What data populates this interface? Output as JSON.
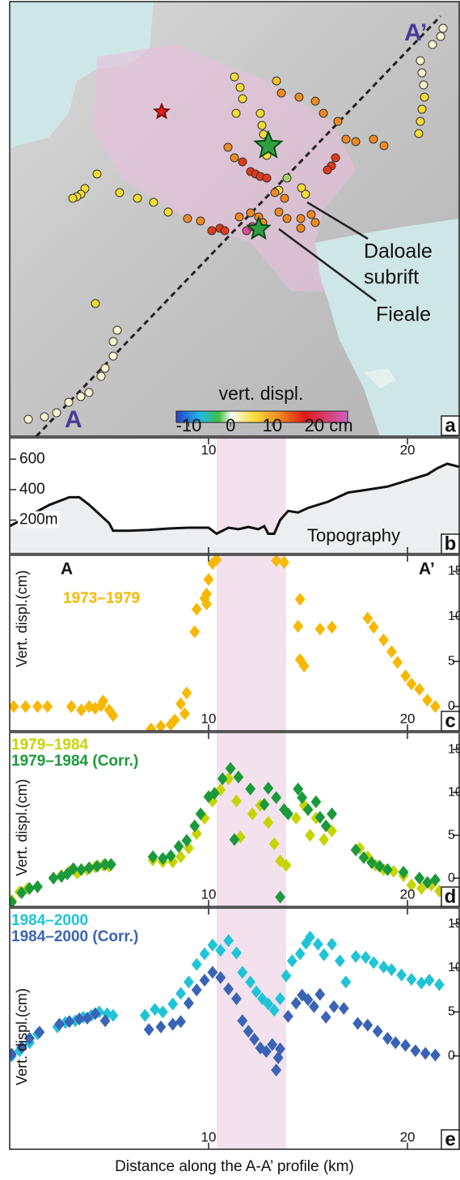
{
  "chart_data": [
    {
      "type": "map",
      "panel_label": "a",
      "labels": {
        "start": "A",
        "end": "A’",
        "rift": [
          "Daloale",
          "subrift"
        ],
        "volcano": "Fieale"
      },
      "colorbar": {
        "title": "vert. displ.",
        "clim": [
          -13,
          28
        ],
        "ticks": [
          -10,
          0,
          10,
          {
            "value": 20,
            "label": "20 cm"
          }
        ]
      }
    },
    {
      "type": "line",
      "panel_label": "b",
      "annotation": "Topography",
      "color": "#111111",
      "xlim": [
        0,
        22.6
      ],
      "xticks": [
        10,
        20
      ],
      "ylim": [
        -20,
        740
      ],
      "yticks": [
        600,
        400,
        {
          "value": 200,
          "label": "200m"
        }
      ],
      "highlight_x": [
        10.4,
        13.9
      ],
      "x": [
        0,
        1,
        2,
        3,
        3.5,
        4,
        4.5,
        5,
        5.2,
        6,
        7,
        8,
        9,
        10,
        10.4,
        11,
        11.5,
        12,
        12.5,
        12.8,
        13,
        13.3,
        13.6,
        14,
        14.5,
        15,
        16,
        17,
        18,
        19,
        20,
        21,
        21.5,
        22,
        22.6
      ],
      "values": [
        160,
        230,
        300,
        350,
        350,
        300,
        240,
        180,
        130,
        130,
        135,
        145,
        150,
        150,
        110,
        150,
        140,
        155,
        140,
        160,
        110,
        110,
        200,
        260,
        250,
        280,
        320,
        380,
        400,
        420,
        460,
        500,
        540,
        570,
        550
      ]
    },
    {
      "type": "scatter",
      "panel_label": "c",
      "ylabel": "Vert. displ.(cm)",
      "start_label": "A",
      "end_label": "A’",
      "xlim": [
        0,
        22.6
      ],
      "xticks": [
        10,
        20
      ],
      "ylim": [
        -2.7,
        16.8
      ],
      "yticks": [
        0,
        5,
        10,
        15
      ],
      "series": [
        {
          "name": "1973–1979",
          "color": "#f9b800",
          "x": [
            0.2,
            0.8,
            1.4,
            1.9,
            3.1,
            3.6,
            4.0,
            4.3,
            4.6,
            4.7,
            5.0,
            5.2,
            7.1,
            7.6,
            8.1,
            8.3,
            8.6,
            8.8,
            8.9,
            9.3,
            9.4,
            9.8,
            9.9,
            10.0,
            10.2,
            10.4,
            9.9,
            13.4,
            13.8,
            14.5,
            14.6,
            14.6,
            14.8,
            15.6,
            16.2,
            18.0,
            18.3,
            18.8,
            19.2,
            19.5,
            19.9,
            20.2,
            20.6,
            21.0,
            21.4
          ],
          "values": [
            0,
            0,
            0,
            0,
            0,
            -0.4,
            0,
            -0.2,
            0.1,
            0.6,
            -0.4,
            -1,
            -2.5,
            -2.2,
            -2,
            -1.5,
            0.3,
            -0.8,
            1.5,
            8.3,
            10.8,
            12,
            12.5,
            14.1,
            15.9,
            16.3,
            11.4,
            16.2,
            16,
            8.9,
            11.9,
            5.2,
            4.5,
            8.6,
            8.8,
            9.8,
            8.8,
            7.4,
            6.1,
            4.9,
            3.4,
            2.5,
            1.9,
            0.7,
            0
          ]
        }
      ]
    },
    {
      "type": "scatter",
      "panel_label": "d",
      "ylabel": "Vert. displ.(cm)",
      "xlim": [
        0,
        22.6
      ],
      "xticks": [
        10,
        20
      ],
      "ylim": [
        -3.3,
        17
      ],
      "yticks": [
        0,
        5,
        10,
        15
      ],
      "series": [
        {
          "name": "1979–1984",
          "color": "#c8d400",
          "x": [
            0.1,
            0.5,
            0.9,
            1.4,
            2.2,
            2.6,
            3.0,
            3.4,
            3.9,
            4.3,
            4.7,
            5.0,
            7.2,
            7.7,
            8.2,
            8.6,
            9.0,
            9.4,
            9.8,
            10.2,
            10.6,
            11.0,
            11.4,
            11.6,
            12.2,
            12.6,
            13.0,
            13.3,
            13.6,
            13.9,
            14.4,
            14.8,
            15.1,
            15.4,
            15.8,
            16.2,
            17.6,
            18.0,
            18.4,
            18.8,
            19.3,
            19.8,
            20.2,
            20.7,
            21.2,
            21.6
          ],
          "values": [
            -2.6,
            -1.6,
            -1.2,
            -1.0,
            0,
            0.3,
            0.8,
            0.6,
            1.0,
            1.3,
            1.5,
            1.4,
            2.1,
            1.9,
            1.9,
            2.5,
            3.5,
            5.2,
            7.0,
            9.0,
            10.3,
            11.6,
            9.0,
            4.8,
            7.5,
            8.5,
            6.5,
            4.0,
            2.0,
            1.5,
            7.0,
            8.5,
            5.0,
            7.0,
            4.5,
            5.5,
            3.5,
            2.5,
            1.5,
            1.0,
            0.8,
            0.3,
            -0.8,
            -1.2,
            -0.8,
            -1.5
          ]
        },
        {
          "name": "1979–1984 (Corr.)",
          "color": "#1a9a3a",
          "x": [
            0.1,
            0.6,
            1.0,
            1.4,
            2.2,
            2.6,
            2.9,
            3.2,
            3.6,
            4.0,
            4.4,
            4.8,
            5.1,
            7.2,
            7.7,
            8.1,
            8.5,
            8.9,
            9.3,
            9.6,
            10.0,
            10.3,
            10.7,
            11.1,
            11.3,
            11.5,
            12.1,
            12.8,
            13.0,
            13.4,
            13.8,
            14.0,
            13.6,
            14.5,
            14.7,
            15.0,
            15.4,
            15.6,
            15.9,
            16.2,
            17.4,
            17.8,
            18.2,
            18.6,
            19.0,
            19.8,
            20.6,
            21.0,
            21.4
          ],
          "values": [
            -2.8,
            -1.7,
            -1.2,
            -1.0,
            0,
            0.2,
            0.5,
            1.1,
            1.0,
            1.2,
            1.4,
            1.6,
            1.6,
            2.5,
            2.3,
            2.6,
            3.7,
            4.4,
            6.1,
            7.5,
            9.5,
            9.9,
            11.6,
            12.8,
            4.5,
            11.8,
            10.4,
            8.6,
            10.5,
            9.4,
            8.0,
            7.5,
            -2.2,
            10.4,
            9.4,
            8.0,
            8.9,
            7.1,
            6.1,
            7.5,
            3.3,
            2.4,
            1.8,
            1.4,
            1.0,
            0.7,
            0,
            -0.5,
            -0.2
          ]
        }
      ]
    },
    {
      "type": "scatter",
      "panel_label": "e",
      "ylabel": "Vert. displ.(cm)",
      "xlabel": "Distance along the A-A’ profile (km)",
      "xlim": [
        0,
        22.6
      ],
      "xticks": [
        10,
        20
      ],
      "ylim": [
        -10.6,
        16.8
      ],
      "yticks": [
        0,
        5,
        10,
        15
      ],
      "series": [
        {
          "name": "1984–2000",
          "color": "#1fc4d6",
          "x": [
            0.1,
            0.5,
            1.0,
            1.4,
            2.4,
            2.8,
            3.3,
            3.7,
            4.1,
            4.5,
            4.9,
            5.2,
            6.8,
            7.3,
            7.7,
            8.2,
            8.6,
            9.0,
            9.4,
            9.8,
            10.2,
            10.6,
            11.0,
            11.4,
            11.7,
            12.1,
            12.4,
            12.7,
            13.0,
            13.3,
            13.6,
            13.9,
            14.2,
            14.6,
            14.9,
            15.1,
            15.5,
            15.8,
            16.2,
            16.6,
            16.9,
            17.4,
            17.9,
            18.3,
            18.8,
            19.2,
            19.7,
            20.2,
            20.7,
            21.1,
            21.6
          ],
          "values": [
            0,
            0.6,
            1.5,
            2.5,
            3.3,
            3.8,
            4.0,
            4.4,
            4.6,
            5.0,
            4.8,
            4.6,
            4.6,
            5.3,
            5.0,
            5.9,
            7.1,
            8.4,
            10.4,
            11.6,
            12.6,
            12.0,
            13.1,
            11.7,
            9.5,
            8.4,
            7.3,
            6.5,
            5.9,
            5.2,
            6.5,
            9.1,
            10.8,
            11.6,
            12.8,
            13.5,
            12.7,
            11.5,
            12.7,
            10.8,
            8.4,
            11.3,
            11.2,
            10.6,
            10.1,
            9.8,
            9.2,
            8.7,
            8.3,
            8.6,
            8.1
          ]
        },
        {
          "name": "1984–2000 (Corr.)",
          "color": "#3a63b5",
          "x": [
            0.1,
            0.6,
            1.0,
            1.5,
            2.5,
            3.0,
            3.5,
            3.9,
            4.3,
            4.8,
            7.0,
            7.6,
            8.2,
            8.6,
            9.0,
            9.4,
            9.8,
            10.2,
            10.6,
            11.0,
            11.4,
            11.7,
            12.0,
            12.3,
            12.6,
            12.9,
            13.2,
            13.5,
            13.4,
            13.6,
            14.0,
            14.4,
            14.7,
            15.0,
            15.3,
            15.6,
            15.9,
            16.3,
            16.8,
            17.5,
            18.0,
            18.5,
            19.0,
            19.4,
            19.9,
            20.4,
            20.9,
            21.4
          ],
          "values": [
            0.2,
            1.0,
            2.0,
            2.7,
            3.6,
            3.9,
            4.2,
            4.3,
            4.8,
            4.0,
            3.0,
            3.3,
            3.6,
            3.9,
            6.0,
            7.5,
            8.6,
            9.5,
            8.9,
            7.6,
            6.5,
            4.0,
            2.8,
            1.9,
            0.9,
            0.5,
            1.3,
            -0.2,
            -1.6,
            0.8,
            4.5,
            6.0,
            6.9,
            6.4,
            5.6,
            7.0,
            4.4,
            5.6,
            5.4,
            3.7,
            3.5,
            2.8,
            2.0,
            1.5,
            1.2,
            0.6,
            0.3,
            0.1
          ]
        }
      ]
    }
  ]
}
